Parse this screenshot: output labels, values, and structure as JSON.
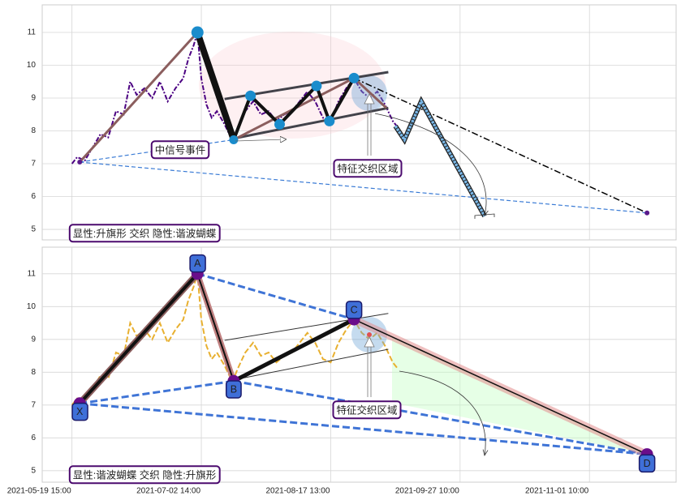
{
  "chart_data": [
    {
      "type": "line",
      "color": "#4b0082",
      "x": [
        0,
        4,
        10,
        16,
        22,
        28,
        34,
        40,
        45,
        50,
        56,
        62,
        68,
        74,
        80,
        86,
        90,
        94,
        97,
        100,
        104,
        108,
        112,
        118,
        124,
        128,
        134,
        140,
        146,
        152,
        158,
        164,
        170,
        176,
        182,
        188,
        194,
        200,
        206,
        212,
        218,
        224,
        230,
        236,
        242,
        248,
        252
      ],
      "values": [
        7.0,
        7.2,
        7.1,
        7.5,
        7.9,
        7.8,
        8.6,
        8.5,
        9.5,
        9.1,
        9.3,
        9.0,
        9.5,
        8.9,
        9.3,
        9.6,
        10.2,
        10.6,
        11.0,
        9.6,
        8.8,
        8.4,
        8.6,
        8.2,
        7.7,
        8.1,
        8.6,
        8.9,
        8.5,
        8.6,
        8.3,
        8.5,
        8.6,
        8.9,
        9.2,
        8.9,
        8.4,
        8.3,
        8.9,
        9.3,
        9.6,
        9.2,
        9.0,
        9.2,
        8.8,
        8.3,
        8.1
      ],
      "xlim": [
        -23,
        467
      ],
      "ylim": [
        4.68,
        11.84
      ],
      "xticks": [
        0,
        100,
        200,
        300,
        400
      ],
      "yticks": [
        5,
        6,
        7,
        8,
        9,
        10,
        11
      ],
      "grid": true,
      "points": {
        "x": [
          6,
          97,
          125,
          218,
          444.5
        ],
        "values": [
          7.05,
          11,
          7.73,
          9.61,
          5.5
        ]
      },
      "zigzag": {
        "x": [
          125,
          138,
          160.5,
          189,
          199,
          218
        ],
        "values": [
          7.73,
          9.07,
          8.2,
          9.37,
          8.3,
          9.61
        ]
      },
      "tail": {
        "x": 243,
        "value": 8.7
      },
      "flag_upper": {
        "x": [
          118,
          244.5
        ],
        "values": [
          8.97,
          9.79
        ]
      },
      "flag_lower": {
        "x": [
          126.6,
          244.5
        ],
        "values": [
          7.78,
          8.7
        ]
      },
      "projection": {
        "x": [
          250,
          257,
          270,
          319
        ],
        "values": [
          8.15,
          7.73,
          8.9,
          5.4
        ]
      },
      "annotations": [
        "中信号事件",
        "特征交织区域",
        "显性:升旗形 交织 隐性:谐波蝴蝶"
      ]
    },
    {
      "type": "line",
      "color": "#e8b030",
      "x": [
        0,
        4,
        10,
        16,
        22,
        28,
        34,
        40,
        45,
        50,
        56,
        62,
        68,
        74,
        80,
        86,
        90,
        94,
        97,
        100,
        104,
        108,
        112,
        118,
        124,
        128,
        134,
        140,
        146,
        152,
        158,
        164,
        170,
        176,
        182,
        188,
        194,
        200,
        206,
        212,
        218,
        224,
        230,
        236,
        242,
        248,
        252
      ],
      "values": [
        7.0,
        7.2,
        7.1,
        7.5,
        7.9,
        7.8,
        8.6,
        8.5,
        9.5,
        9.1,
        9.3,
        9.0,
        9.5,
        8.9,
        9.3,
        9.6,
        10.2,
        10.6,
        11.0,
        9.6,
        8.8,
        8.4,
        8.6,
        8.2,
        7.7,
        8.1,
        8.6,
        8.9,
        8.5,
        8.6,
        8.3,
        8.5,
        8.6,
        8.9,
        9.2,
        8.9,
        8.4,
        8.3,
        8.9,
        9.3,
        9.6,
        9.2,
        9.0,
        9.2,
        8.8,
        8.3,
        8.1
      ],
      "xlim": [
        -23,
        467
      ],
      "ylim": [
        4.65,
        11.81
      ],
      "xticks": [
        {
          "value": 0,
          "label": "2021-05-19 15:00"
        },
        {
          "value": 100,
          "label": "2021-07-02 14:00"
        },
        {
          "value": 200,
          "label": "2021-08-17 13:00"
        },
        {
          "value": 300,
          "label": "2021-09-27 10:00"
        },
        {
          "value": 400,
          "label": "2021-11-01 10:00"
        }
      ],
      "yticks": [
        5,
        6,
        7,
        8,
        9,
        10,
        11
      ],
      "grid": true,
      "points": {
        "x": [
          6,
          97,
          125,
          218,
          444.5
        ],
        "values": [
          7.05,
          11,
          7.73,
          9.61,
          5.5
        ],
        "labels": [
          "X",
          "A",
          "B",
          "C",
          "D"
        ]
      },
      "flag_upper": {
        "x": [
          118,
          244.5
        ],
        "values": [
          8.97,
          9.79
        ]
      },
      "flag_lower": {
        "x": [
          126.6,
          244.5
        ],
        "values": [
          7.78,
          8.7
        ]
      },
      "annotations": [
        "特征交织区域",
        "显性:谐波蝴蝶 交织 隐性:升旗形"
      ]
    }
  ]
}
